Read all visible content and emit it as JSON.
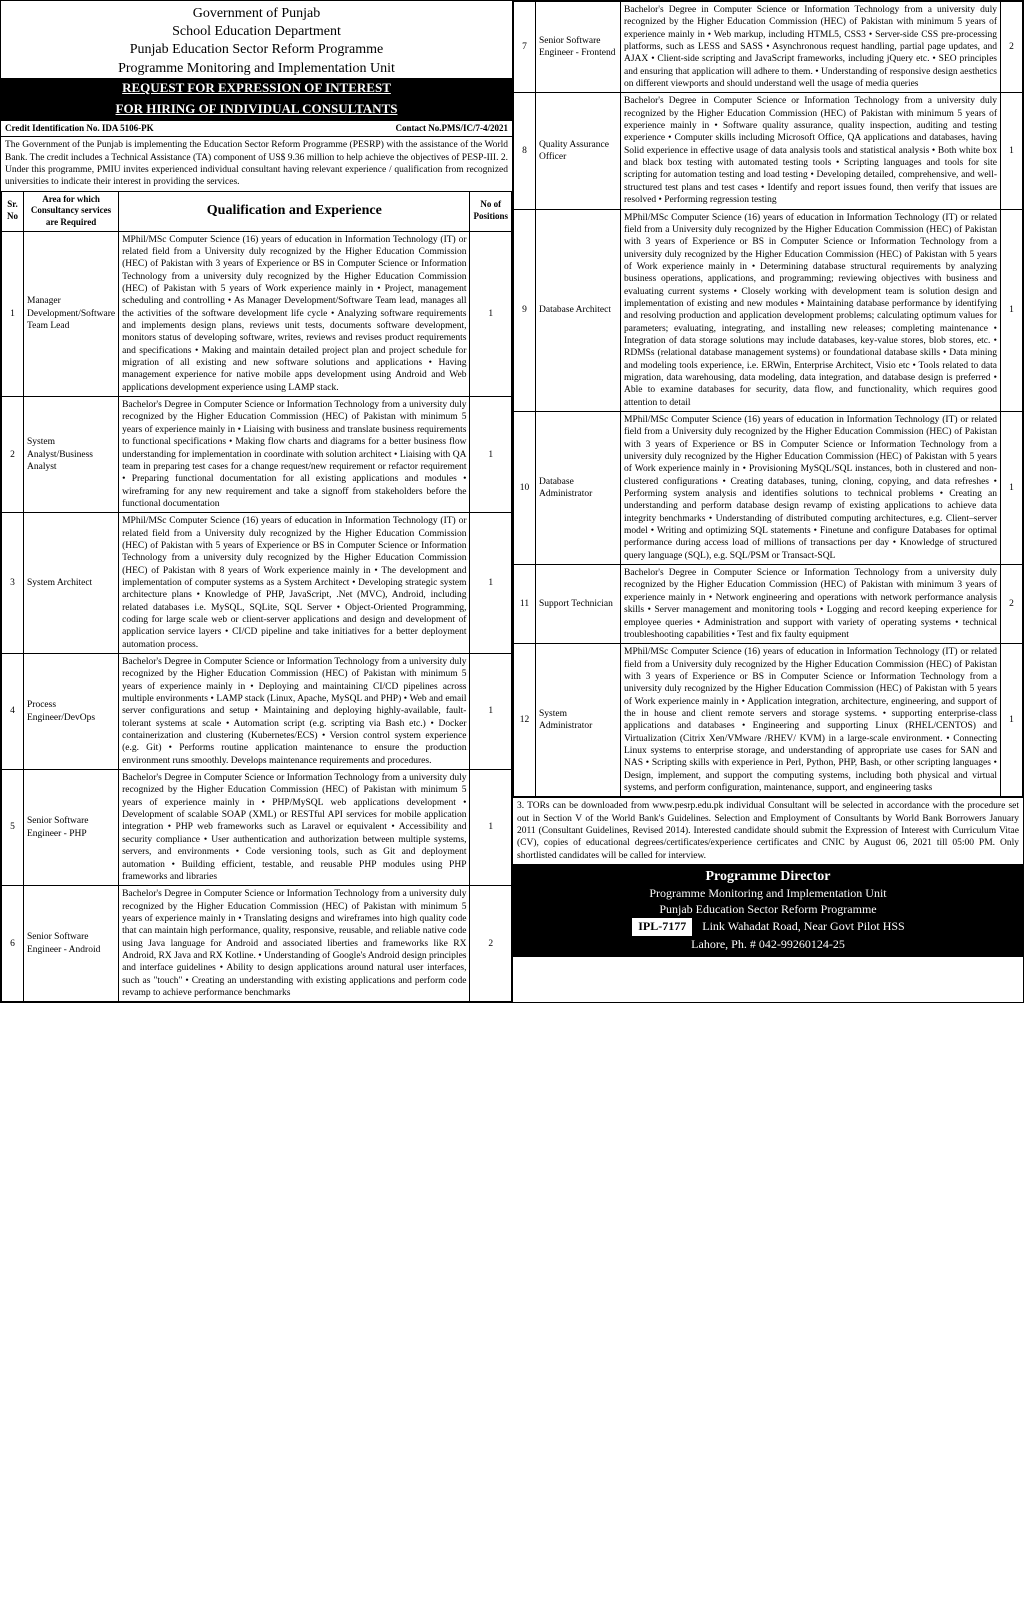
{
  "header": {
    "l1": "Government of Punjab",
    "l2": "School Education Department",
    "l3": "Punjab Education Sector Reform Programme",
    "l4": "Programme Monitoring and Implementation Unit",
    "t1": "REQUEST FOR EXPRESSION OF INTEREST",
    "t2": "FOR HIRING OF INDIVIDUAL CONSULTANTS",
    "credit_label": "Credit Identification No. IDA 5106-PK",
    "contact_label": "Contact No.PMS/IC/7-4/2021"
  },
  "intro": "The Government of the Punjab is implementing the Education Sector Reform Programme (PESRP) with the assistance of the World Bank. The credit includes a Technical Assistance (TA) component of US$ 9.36 million to help achieve the objectives of PESP-III.\n2. Under this programme, PMIU invites experienced individual consultant having relevant experience / qualification from recognized universities to indicate their interest in providing the services.",
  "columns": {
    "sr": "Sr. No",
    "area": "Area for which Consultancy services are Required",
    "qual": "Qualification and Experience",
    "pos": "No of Positions"
  },
  "rows_left": [
    {
      "sr": "1",
      "area": "Manager Development/Software Team Lead",
      "pos": "1",
      "qual": "MPhil/MSc Computer Science (16) years of education in Information Technology (IT) or related field from a University duly recognized by the Higher Education Commission (HEC) of Pakistan with 3 years of Experience or BS in Computer Science or Information Technology from a university duly recognized by the Higher Education Commission (HEC) of Pakistan with 5 years of Work experience mainly in • Project, management scheduling and controlling • As Manager Development/Software Team lead, manages all the activities of the software development life cycle • Analyzing software requirements and implements design plans, reviews unit tests, documents software development, monitors status of developing software, writes, reviews and revises product requirements and specifications • Making and maintain detailed project plan and project schedule for migration of all existing and new software solutions and applications • Having management experience for native mobile apps development using Android and Web applications development experience using LAMP stack."
    },
    {
      "sr": "2",
      "area": "System Analyst/Business Analyst",
      "pos": "1",
      "qual": "Bachelor's Degree in Computer Science or Information Technology from a university duly recognized by the Higher Education Commission (HEC) of Pakistan with minimum 5 years of experience mainly in • Liaising with business and translate business requirements to functional specifications • Making flow charts and diagrams for a better business flow understanding for implementation in coordinate with solution architect • Liaising with QA team in preparing test cases for a change request/new requirement or refactor requirement • Preparing functional documentation for all existing applications and modules • wireframing for any new requirement and take a signoff from stakeholders before the functional documentation"
    },
    {
      "sr": "3",
      "area": "System Architect",
      "pos": "1",
      "qual": "MPhil/MSc Computer Science (16) years of education in Information Technology (IT) or related field from a University duly recognized by the Higher Education Commission (HEC) of Pakistan with 5 years of Experience or BS in Computer Science or Information Technology from a university duly recognized by the Higher Education Commission (HEC) of Pakistan with 8 years of Work experience mainly in • The development and implementation of computer systems as a System Architect • Developing strategic system architecture plans • Knowledge of PHP, JavaScript, .Net (MVC), Android, including related databases i.e. MySQL, SQLite, SQL Server • Object-Oriented Programming, coding for large scale web or client-server applications and design and development of application service layers • CI/CD pipeline and take initiatives for a better deployment automation process."
    },
    {
      "sr": "4",
      "area": "Process Engineer/DevOps",
      "pos": "1",
      "qual": "Bachelor's Degree in Computer Science or Information Technology from a university duly recognized by the Higher Education Commission (HEC) of Pakistan with minimum 5 years of experience mainly in • Deploying and maintaining CI/CD pipelines across multiple environments • LAMP stack (Linux, Apache, MySQL and PHP) • Web and email server configurations and setup • Maintaining and deploying highly-available, fault-tolerant systems at scale • Automation script (e.g. scripting via Bash etc.) • Docker containerization and clustering (Kubernetes/ECS) • Version control system experience (e.g. Git) • Performs routine application maintenance to ensure the production environment runs smoothly. Develops maintenance requirements and procedures."
    },
    {
      "sr": "5",
      "area": "Senior Software Engineer - PHP",
      "pos": "1",
      "qual": "Bachelor's Degree in Computer Science or Information Technology from a university duly recognized by the Higher Education Commission (HEC) of Pakistan with minimum 5 years of experience mainly in • PHP/MySQL web applications development • Development of scalable SOAP (XML) or RESTful API services for mobile application integration • PHP web frameworks such as Laravel or equivalent • Accessibility and security compliance • User authentication and authorization between multiple systems, servers, and environments • Code versioning tools, such as Git and deployment automation • Building efficient, testable, and reusable PHP modules using PHP frameworks and libraries"
    },
    {
      "sr": "6",
      "area": "Senior Software Engineer - Android",
      "pos": "2",
      "qual": "Bachelor's Degree in Computer Science or Information Technology from a university duly recognized by the Higher Education Commission (HEC) of Pakistan with minimum 5 years of experience mainly in • Translating designs and wireframes into high quality code that can maintain high performance, quality, responsive, reusable, and reliable native code using Java language for Android and associated liberties and frameworks like RX Android, RX Java and RX Kotline. • Understanding of Google's Android design principles and interface guidelines • Ability to design applications around natural user interfaces, such as \"touch\" • Creating an understanding with existing applications and perform code revamp to achieve performance benchmarks"
    }
  ],
  "rows_right": [
    {
      "sr": "7",
      "area": "Senior Software Engineer - Frontend",
      "pos": "2",
      "qual": "Bachelor's Degree in Computer Science or Information Technology from a university duly recognized by the Higher Education Commission (HEC) of Pakistan with minimum 5 years of experience mainly in • Web markup, including HTML5, CSS3 • Server-side CSS pre-processing platforms, such as LESS and SASS • Asynchronous request handling, partial page updates, and AJAX • Client-side scripting and JavaScript frameworks, including jQuery etc. • SEO principles and ensuring that application will adhere to them. • Understanding of responsive design aesthetics on different viewports and should understand well the usage of media queries"
    },
    {
      "sr": "8",
      "area": "Quality Assurance Officer",
      "pos": "1",
      "qual": "Bachelor's Degree in Computer Science or Information Technology from a university duly recognized by the Higher Education Commission (HEC) of Pakistan with minimum 5 years of experience mainly in • Software quality assurance, quality inspection, auditing and testing experience • Computer skills including Microsoft Office, QA applications and databases, having Solid experience in effective usage of data analysis tools and statistical analysis • Both white box and black box testing with automated testing tools • Scripting languages and tools for site scripting for automation testing and load testing • Developing detailed, comprehensive, and well-structured test plans and test cases • Identify and report issues found, then verify that issues are resolved • Performing regression testing"
    },
    {
      "sr": "9",
      "area": "Database Architect",
      "pos": "1",
      "qual": "MPhil/MSc Computer Science (16) years of education in Information Technology (IT) or related field from a University duly recognized by the Higher Education Commission (HEC) of Pakistan with 3 years of Experience or BS in Computer Science or Information Technology from a university duly recognized by the Higher Education Commission (HEC) of Pakistan with 5 years of Work experience mainly in • Determining database structural requirements by analyzing business operations, applications, and programming; reviewing objectives with business and evaluating current systems • Closely working with development team is solution design and implementation of existing and new modules • Maintaining database performance by identifying and resolving production and application development problems; calculating optimum values for parameters; evaluating, integrating, and installing new releases; completing maintenance • Integration of data storage solutions may include databases, key-value stores, blob stores, etc. • RDMSs (relational database management systems) or foundational database skills • Data mining and modeling tools experience, i.e. ERWin, Enterprise Architect, Visio etc • Tools related to data migration, data warehousing, data modeling, data integration, and database design is preferred • Able to examine databases for security, data flow, and functionality, which requires good attention to detail"
    },
    {
      "sr": "10",
      "area": "Database Administrator",
      "pos": "1",
      "qual": "MPhil/MSc Computer Science (16) years of education in Information Technology (IT) or related field from a University duly recognized by the Higher Education Commission (HEC) of Pakistan with 3 years of Experience or BS in Computer Science or Information Technology from a university duly recognized by the Higher Education Commission (HEC) of Pakistan with 5 years of Work experience mainly in • Provisioning MySQL/SQL instances, both in clustered and non-clustered configurations • Creating databases, tuning, cloning, copying, and data refreshes • Performing system analysis and identifies solutions to technical problems • Creating an understanding and perform database design revamp of existing applications to achieve data integrity benchmarks • Understanding of distributed computing architectures, e.g. Client–server model • Writing and optimizing SQL statements • Finetune and configure Databases for optimal performance during access load of millions of transactions per day • Knowledge of structured query language (SQL), e.g. SQL/PSM or Transact-SQL"
    },
    {
      "sr": "11",
      "area": "Support Technician",
      "pos": "2",
      "qual": "Bachelor's Degree in Computer Science or Information Technology from a university duly recognized by the Higher Education Commission (HEC) of Pakistan with minimum 3 years of experience mainly in • Network engineering and operations with network performance analysis skills • Server management and monitoring tools • Logging and record keeping experience for employee queries • Administration and support with variety of operating systems • technical troubleshooting capabilities • Test and fix faulty equipment"
    },
    {
      "sr": "12",
      "area": "System Administrator",
      "pos": "1",
      "qual": "MPhil/MSc Computer Science (16) years of education in Information Technology (IT) or related field from a University duly recognized by the Higher Education Commission (HEC) of Pakistan with 3 years of Experience or BS in Computer Science or Information Technology from a university duly recognized by the Higher Education Commission (HEC) of Pakistan with 5 years of Work experience mainly in • Application integration, architecture, engineering, and support of the in house and client remote servers and storage systems. • supporting enterprise-class applications and databases • Engineering and supporting Linux (RHEL/CENTOS) and Virtualization (Citrix Xen/VMware /RHEV/ KVM) in a large-scale environment. • Connecting Linux systems to enterprise storage, and understanding of appropriate use cases for SAN and NAS • Scripting skills with experience in Perl, Python, PHP, Bash, or other scripting languages • Design, implement, and support the computing systems, including both physical and virtual systems, and perform configuration, maintenance, support, and engineering tasks"
    }
  ],
  "footnote": "3. TORs can be downloaded from www.pesrp.edu.pk individual Consultant will be selected in accordance with the procedure set out in Section V of the World Bank's Guidelines. Selection and Employment of Consultants by World Bank Borrowers January 2011 (Consultant Guidelines, Revised 2014). Interested candidate should submit the Expression of Interest with Curriculum Vitae (CV), copies of educational degrees/certificates/experience certificates and CNIC by August 06, 2021 till 05:00 PM. Only shortlisted candidates will be called for interview.",
  "footer": {
    "l1": "Programme Director",
    "l2": "Programme Monitoring and Implementation Unit",
    "l3": "Punjab Education Sector Reform Programme",
    "ipl": "IPL-7177",
    "l4": "Link Wahadat Road, Near Govt Pilot HSS",
    "l5": "Lahore, Ph. # 042-99260124-25"
  }
}
